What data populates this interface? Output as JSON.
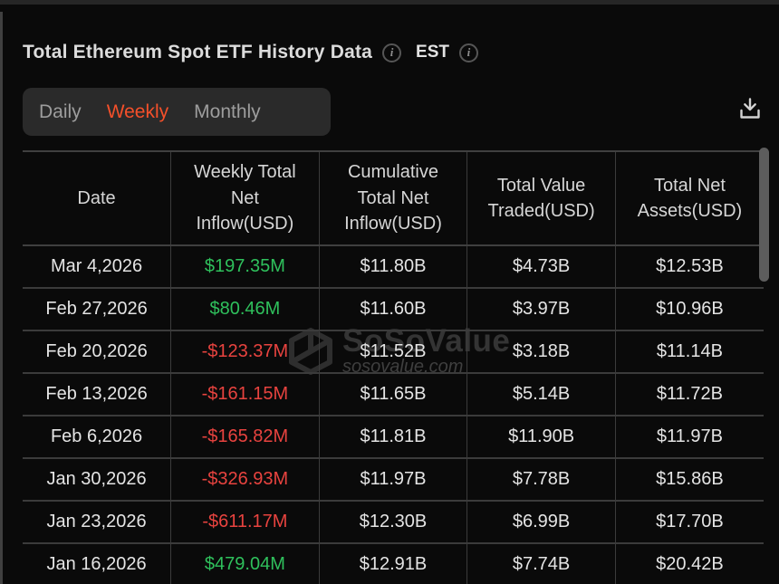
{
  "header": {
    "title": "Total Ethereum Spot ETF History Data",
    "timezone": "EST"
  },
  "tabs": [
    {
      "label": "Daily",
      "active": false
    },
    {
      "label": "Weekly",
      "active": true
    },
    {
      "label": "Monthly",
      "active": false
    }
  ],
  "table": {
    "columns": [
      "Date",
      "Weekly Total Net Inflow(USD)",
      "Cumulative Total Net Inflow(USD)",
      "Total Value Traded(USD)",
      "Total Net Assets(USD)"
    ],
    "rows": [
      {
        "date": "Mar 4,2026",
        "weekly_net_inflow": "$197.35M",
        "inflow_direction": "positive",
        "cumulative_total_net_inflow": "$11.80B",
        "total_value_traded": "$4.73B",
        "total_net_assets": "$12.53B"
      },
      {
        "date": "Feb 27,2026",
        "weekly_net_inflow": "$80.46M",
        "inflow_direction": "positive",
        "cumulative_total_net_inflow": "$11.60B",
        "total_value_traded": "$3.97B",
        "total_net_assets": "$10.96B"
      },
      {
        "date": "Feb 20,2026",
        "weekly_net_inflow": "-$123.37M",
        "inflow_direction": "negative",
        "cumulative_total_net_inflow": "$11.52B",
        "total_value_traded": "$3.18B",
        "total_net_assets": "$11.14B"
      },
      {
        "date": "Feb 13,2026",
        "weekly_net_inflow": "-$161.15M",
        "inflow_direction": "negative",
        "cumulative_total_net_inflow": "$11.65B",
        "total_value_traded": "$5.14B",
        "total_net_assets": "$11.72B"
      },
      {
        "date": "Feb 6,2026",
        "weekly_net_inflow": "-$165.82M",
        "inflow_direction": "negative",
        "cumulative_total_net_inflow": "$11.81B",
        "total_value_traded": "$11.90B",
        "total_net_assets": "$11.97B"
      },
      {
        "date": "Jan 30,2026",
        "weekly_net_inflow": "-$326.93M",
        "inflow_direction": "negative",
        "cumulative_total_net_inflow": "$11.97B",
        "total_value_traded": "$7.78B",
        "total_net_assets": "$15.86B"
      },
      {
        "date": "Jan 23,2026",
        "weekly_net_inflow": "-$611.17M",
        "inflow_direction": "negative",
        "cumulative_total_net_inflow": "$12.30B",
        "total_value_traded": "$6.99B",
        "total_net_assets": "$17.70B"
      },
      {
        "date": "Jan 16,2026",
        "weekly_net_inflow": "$479.04M",
        "inflow_direction": "positive",
        "cumulative_total_net_inflow": "$12.91B",
        "total_value_traded": "$7.74B",
        "total_net_assets": "$20.42B"
      }
    ]
  },
  "watermark": {
    "name": "SoSoValue",
    "domain": "sosovalue.com"
  },
  "icons": {
    "title_info": "info-icon",
    "timezone_info": "info-icon",
    "download": "download-icon",
    "watermark_logo": "cube-logo-icon"
  },
  "colors": {
    "positive": "#2fc05c",
    "negative": "#e8433f",
    "accent": "#f4502a",
    "background": "#0a0a0a"
  }
}
